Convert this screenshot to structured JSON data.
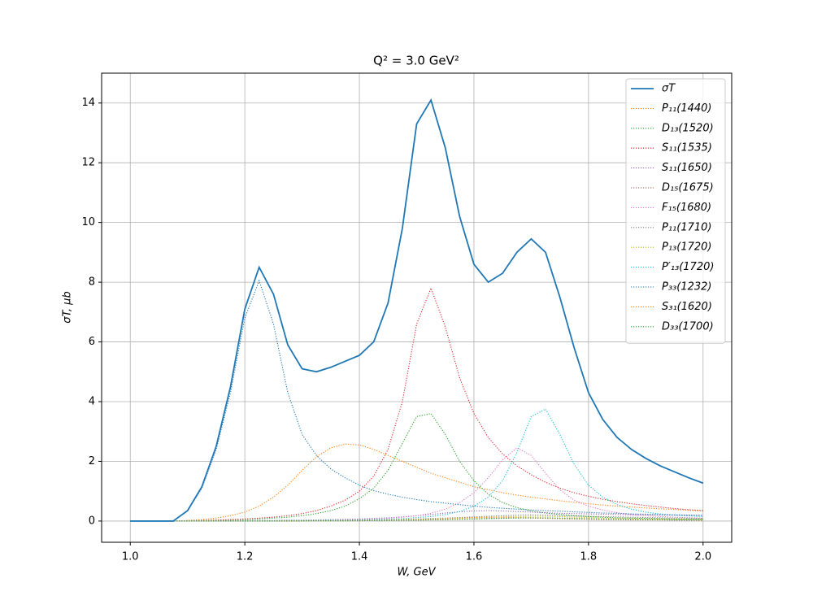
{
  "chart_data": {
    "type": "line",
    "title": "Q² = 3.0 GeV²",
    "x_label": "W, GeV",
    "y_label": "σT, μb",
    "x": [
      1.0,
      1.025,
      1.05,
      1.075,
      1.1,
      1.125,
      1.15,
      1.175,
      1.2,
      1.225,
      1.25,
      1.275,
      1.3,
      1.325,
      1.35,
      1.375,
      1.4,
      1.425,
      1.45,
      1.475,
      1.5,
      1.525,
      1.55,
      1.575,
      1.6,
      1.625,
      1.65,
      1.675,
      1.7,
      1.725,
      1.75,
      1.775,
      1.8,
      1.825,
      1.85,
      1.875,
      1.9,
      1.925,
      1.95,
      1.975,
      2.0
    ],
    "xlim": [
      0.95,
      2.05
    ],
    "ylim": [
      -0.71,
      15.0
    ],
    "xticks": [
      {
        "value": 1,
        "label": "1.0"
      },
      1.2,
      1.4,
      1.6,
      1.8,
      {
        "value": 2,
        "label": "2.0"
      }
    ],
    "yticks": [
      0,
      2,
      4,
      6,
      8,
      10,
      12,
      14
    ],
    "grid": true,
    "legend": "upper right",
    "series": [
      {
        "name": "σT",
        "color": "#1f77b4",
        "linestyle": "solid",
        "values": [
          0,
          0,
          0,
          0,
          0.35,
          1.15,
          2.5,
          4.5,
          7.1,
          8.5,
          7.6,
          5.9,
          5.1,
          5.0,
          5.15,
          5.35,
          5.55,
          6.0,
          7.3,
          9.8,
          13.3,
          14.1,
          12.5,
          10.2,
          8.6,
          8.0,
          8.3,
          9.0,
          9.45,
          9.0,
          7.5,
          5.8,
          4.3,
          3.4,
          2.8,
          2.4,
          2.1,
          1.85,
          1.65,
          1.45,
          1.27
        ]
      },
      {
        "name": "P₁₁(1440)",
        "color": "#ff7f0e",
        "linestyle": "dotted",
        "values": [
          0,
          0,
          0,
          0,
          0.02,
          0.05,
          0.1,
          0.18,
          0.3,
          0.5,
          0.8,
          1.2,
          1.7,
          2.15,
          2.45,
          2.58,
          2.55,
          2.4,
          2.2,
          2.0,
          1.8,
          1.6,
          1.45,
          1.3,
          1.15,
          1.05,
          0.95,
          0.87,
          0.8,
          0.74,
          0.68,
          0.63,
          0.58,
          0.54,
          0.5,
          0.47,
          0.44,
          0.41,
          0.39,
          0.36,
          0.34
        ]
      },
      {
        "name": "D₁₃(1520)",
        "color": "#2ca02c",
        "linestyle": "dotted",
        "values": [
          0,
          0,
          0,
          0,
          0.01,
          0.02,
          0.03,
          0.04,
          0.05,
          0.07,
          0.1,
          0.13,
          0.18,
          0.25,
          0.35,
          0.5,
          0.75,
          1.1,
          1.7,
          2.6,
          3.5,
          3.6,
          2.9,
          2.0,
          1.35,
          0.9,
          0.62,
          0.45,
          0.34,
          0.27,
          0.22,
          0.18,
          0.15,
          0.13,
          0.11,
          0.1,
          0.09,
          0.08,
          0.07,
          0.06,
          0.06
        ]
      },
      {
        "name": "S₁₁(1535)",
        "color": "#d62728",
        "linestyle": "dotted",
        "values": [
          0,
          0,
          0,
          0,
          0.01,
          0.02,
          0.03,
          0.05,
          0.07,
          0.1,
          0.13,
          0.18,
          0.25,
          0.35,
          0.5,
          0.7,
          1.0,
          1.5,
          2.4,
          4.0,
          6.6,
          7.8,
          6.5,
          4.8,
          3.6,
          2.8,
          2.25,
          1.85,
          1.55,
          1.3,
          1.1,
          0.95,
          0.83,
          0.73,
          0.65,
          0.58,
          0.52,
          0.47,
          0.42,
          0.38,
          0.35
        ]
      },
      {
        "name": "S₁₁(1650)",
        "color": "#9467bd",
        "linestyle": "dotted",
        "values": [
          0,
          0,
          0,
          0,
          0,
          0,
          0.01,
          0.01,
          0.01,
          0.02,
          0.02,
          0.03,
          0.03,
          0.04,
          0.05,
          0.06,
          0.07,
          0.09,
          0.11,
          0.14,
          0.18,
          0.22,
          0.27,
          0.31,
          0.34,
          0.35,
          0.34,
          0.32,
          0.3,
          0.28,
          0.26,
          0.25,
          0.24,
          0.23,
          0.22,
          0.21,
          0.21,
          0.2,
          0.2,
          0.2,
          0.19
        ]
      },
      {
        "name": "D₁₅(1675)",
        "color": "#8c564b",
        "linestyle": "dotted",
        "values": [
          0,
          0,
          0,
          0,
          0,
          0,
          0,
          0,
          0,
          0,
          0,
          0,
          0,
          0.01,
          0.01,
          0.01,
          0.01,
          0.02,
          0.02,
          0.03,
          0.03,
          0.04,
          0.05,
          0.06,
          0.07,
          0.09,
          0.1,
          0.11,
          0.1,
          0.09,
          0.08,
          0.07,
          0.06,
          0.05,
          0.05,
          0.04,
          0.04,
          0.04,
          0.03,
          0.03,
          0.03
        ]
      },
      {
        "name": "F₁₅(1680)",
        "color": "#e377c2",
        "linestyle": "dotted",
        "values": [
          0,
          0,
          0,
          0,
          0,
          0,
          0.01,
          0.01,
          0.01,
          0.01,
          0.01,
          0.02,
          0.02,
          0.03,
          0.03,
          0.04,
          0.05,
          0.07,
          0.09,
          0.13,
          0.18,
          0.26,
          0.4,
          0.62,
          0.95,
          1.45,
          2.05,
          2.45,
          2.2,
          1.6,
          1.05,
          0.7,
          0.5,
          0.37,
          0.28,
          0.22,
          0.18,
          0.15,
          0.13,
          0.11,
          0.1
        ]
      },
      {
        "name": "P₁₁(1710)",
        "color": "#7f7f7f",
        "linestyle": "dotted",
        "values": [
          0,
          0,
          0,
          0,
          0,
          0,
          0,
          0,
          0.01,
          0.01,
          0.01,
          0.01,
          0.02,
          0.02,
          0.02,
          0.03,
          0.03,
          0.04,
          0.05,
          0.06,
          0.07,
          0.09,
          0.1,
          0.12,
          0.14,
          0.16,
          0.18,
          0.2,
          0.21,
          0.2,
          0.19,
          0.17,
          0.16,
          0.15,
          0.14,
          0.13,
          0.12,
          0.11,
          0.1,
          0.1,
          0.09
        ]
      },
      {
        "name": "P₁₃(1720)",
        "color": "#bcbd22",
        "linestyle": "dotted",
        "values": [
          0,
          0,
          0,
          0,
          0,
          0,
          0,
          0,
          0,
          0.01,
          0.01,
          0.01,
          0.01,
          0.02,
          0.02,
          0.02,
          0.03,
          0.03,
          0.04,
          0.05,
          0.06,
          0.07,
          0.08,
          0.09,
          0.11,
          0.12,
          0.14,
          0.15,
          0.16,
          0.16,
          0.15,
          0.13,
          0.12,
          0.1,
          0.09,
          0.08,
          0.07,
          0.07,
          0.06,
          0.06,
          0.05
        ]
      },
      {
        "name": "P′₁₃(1720)",
        "color": "#17becf",
        "linestyle": "dotted",
        "values": [
          0,
          0,
          0,
          0,
          0,
          0,
          0,
          0.01,
          0.01,
          0.01,
          0.01,
          0.02,
          0.02,
          0.02,
          0.03,
          0.03,
          0.04,
          0.05,
          0.06,
          0.08,
          0.12,
          0.15,
          0.22,
          0.32,
          0.5,
          0.8,
          1.35,
          2.3,
          3.5,
          3.75,
          2.9,
          1.9,
          1.2,
          0.8,
          0.55,
          0.4,
          0.3,
          0.24,
          0.2,
          0.17,
          0.15
        ]
      },
      {
        "name": "P₃₃(1232)",
        "color": "#1f77b4",
        "linestyle": "dotted",
        "values": [
          0,
          0,
          0,
          0,
          0.35,
          1.1,
          2.4,
          4.3,
          6.8,
          8.05,
          6.6,
          4.3,
          2.9,
          2.2,
          1.75,
          1.45,
          1.2,
          1.02,
          0.9,
          0.8,
          0.72,
          0.65,
          0.6,
          0.55,
          0.5,
          0.46,
          0.43,
          0.4,
          0.37,
          0.35,
          0.33,
          0.31,
          0.29,
          0.27,
          0.26,
          0.24,
          0.23,
          0.22,
          0.21,
          0.2,
          0.19
        ]
      },
      {
        "name": "S₃₁(1620)",
        "color": "#ff7f0e",
        "linestyle": "dotted",
        "values": [
          0,
          0,
          0,
          0,
          0,
          0,
          0,
          0,
          0,
          0,
          0,
          0.01,
          0.01,
          0.01,
          0.01,
          0.02,
          0.02,
          0.02,
          0.03,
          0.04,
          0.05,
          0.06,
          0.08,
          0.1,
          0.12,
          0.13,
          0.13,
          0.12,
          0.11,
          0.1,
          0.09,
          0.08,
          0.07,
          0.06,
          0.06,
          0.05,
          0.05,
          0.04,
          0.04,
          0.04,
          0.03
        ]
      },
      {
        "name": "D₃₃(1700)",
        "color": "#2ca02c",
        "linestyle": "dotted",
        "values": [
          0,
          0,
          0,
          0,
          0,
          0,
          0,
          0,
          0,
          0,
          0,
          0,
          0.01,
          0.01,
          0.01,
          0.01,
          0.02,
          0.02,
          0.02,
          0.03,
          0.03,
          0.04,
          0.05,
          0.06,
          0.07,
          0.08,
          0.09,
          0.1,
          0.11,
          0.11,
          0.1,
          0.09,
          0.08,
          0.07,
          0.06,
          0.06,
          0.05,
          0.05,
          0.04,
          0.04,
          0.04
        ]
      }
    ]
  }
}
